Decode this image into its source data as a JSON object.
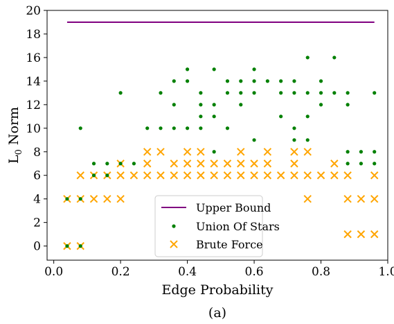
{
  "chart_data": {
    "type": "scatter",
    "caption": "(a)",
    "xlabel": "Edge Probability",
    "ylabel": {
      "base": "L",
      "sub": "0",
      "rest": " Norm"
    },
    "xlim": [
      -0.02,
      1.0
    ],
    "ylim": [
      -1.2,
      20.0
    ],
    "xticks": [
      0.0,
      0.2,
      0.4,
      0.6,
      0.8,
      1.0
    ],
    "xtick_labels": [
      "0.0",
      "0.2",
      "0.4",
      "0.6",
      "0.8",
      "1.0"
    ],
    "yticks": [
      0,
      2,
      4,
      6,
      8,
      10,
      12,
      14,
      16,
      18,
      20
    ],
    "ytick_labels": [
      "0",
      "2",
      "4",
      "6",
      "8",
      "10",
      "12",
      "14",
      "16",
      "18",
      "20"
    ],
    "grid": false,
    "legend_position": "bottom-center",
    "series": [
      {
        "name": "Upper Bound",
        "kind": "line",
        "color": "#800080",
        "x": [
          0.04,
          0.96
        ],
        "y": [
          19,
          19
        ]
      },
      {
        "name": "Union Of Stars",
        "kind": "dot",
        "color": "#008000",
        "points": [
          [
            0.04,
            0
          ],
          [
            0.04,
            4
          ],
          [
            0.08,
            0
          ],
          [
            0.08,
            4
          ],
          [
            0.08,
            10
          ],
          [
            0.12,
            6
          ],
          [
            0.12,
            7
          ],
          [
            0.16,
            6
          ],
          [
            0.16,
            7
          ],
          [
            0.2,
            7
          ],
          [
            0.2,
            13
          ],
          [
            0.24,
            7
          ],
          [
            0.28,
            10
          ],
          [
            0.32,
            10
          ],
          [
            0.32,
            13
          ],
          [
            0.36,
            10
          ],
          [
            0.36,
            12
          ],
          [
            0.36,
            14
          ],
          [
            0.4,
            10
          ],
          [
            0.4,
            14
          ],
          [
            0.4,
            15
          ],
          [
            0.44,
            10
          ],
          [
            0.44,
            11
          ],
          [
            0.44,
            12
          ],
          [
            0.44,
            13
          ],
          [
            0.48,
            8
          ],
          [
            0.48,
            11
          ],
          [
            0.48,
            12
          ],
          [
            0.48,
            15
          ],
          [
            0.52,
            10
          ],
          [
            0.52,
            13
          ],
          [
            0.52,
            14
          ],
          [
            0.56,
            12
          ],
          [
            0.56,
            13
          ],
          [
            0.56,
            14
          ],
          [
            0.6,
            9
          ],
          [
            0.6,
            13
          ],
          [
            0.6,
            14
          ],
          [
            0.6,
            15
          ],
          [
            0.64,
            14
          ],
          [
            0.68,
            11
          ],
          [
            0.68,
            13
          ],
          [
            0.68,
            14
          ],
          [
            0.72,
            9
          ],
          [
            0.72,
            10
          ],
          [
            0.72,
            13
          ],
          [
            0.72,
            14
          ],
          [
            0.76,
            9
          ],
          [
            0.76,
            11
          ],
          [
            0.76,
            13
          ],
          [
            0.76,
            16
          ],
          [
            0.8,
            12
          ],
          [
            0.8,
            13
          ],
          [
            0.8,
            14
          ],
          [
            0.84,
            13
          ],
          [
            0.84,
            16
          ],
          [
            0.88,
            7
          ],
          [
            0.88,
            8
          ],
          [
            0.88,
            12
          ],
          [
            0.88,
            13
          ],
          [
            0.92,
            7
          ],
          [
            0.92,
            8
          ],
          [
            0.96,
            7
          ],
          [
            0.96,
            8
          ],
          [
            0.96,
            13
          ]
        ]
      },
      {
        "name": "Brute Force",
        "kind": "cross",
        "color": "#FFA500",
        "points": [
          [
            0.04,
            0
          ],
          [
            0.04,
            4
          ],
          [
            0.08,
            0
          ],
          [
            0.08,
            4
          ],
          [
            0.08,
            6
          ],
          [
            0.12,
            4
          ],
          [
            0.12,
            6
          ],
          [
            0.16,
            4
          ],
          [
            0.16,
            6
          ],
          [
            0.2,
            4
          ],
          [
            0.2,
            6
          ],
          [
            0.2,
            7
          ],
          [
            0.24,
            6
          ],
          [
            0.28,
            6
          ],
          [
            0.28,
            7
          ],
          [
            0.28,
            8
          ],
          [
            0.32,
            6
          ],
          [
            0.32,
            8
          ],
          [
            0.36,
            6
          ],
          [
            0.36,
            7
          ],
          [
            0.4,
            6
          ],
          [
            0.4,
            7
          ],
          [
            0.4,
            8
          ],
          [
            0.44,
            6
          ],
          [
            0.44,
            7
          ],
          [
            0.44,
            8
          ],
          [
            0.48,
            6
          ],
          [
            0.48,
            7
          ],
          [
            0.52,
            6
          ],
          [
            0.52,
            7
          ],
          [
            0.56,
            6
          ],
          [
            0.56,
            7
          ],
          [
            0.56,
            8
          ],
          [
            0.6,
            6
          ],
          [
            0.6,
            7
          ],
          [
            0.64,
            6
          ],
          [
            0.64,
            7
          ],
          [
            0.64,
            8
          ],
          [
            0.68,
            6
          ],
          [
            0.72,
            6
          ],
          [
            0.72,
            7
          ],
          [
            0.72,
            8
          ],
          [
            0.76,
            4
          ],
          [
            0.76,
            6
          ],
          [
            0.76,
            8
          ],
          [
            0.8,
            6
          ],
          [
            0.84,
            6
          ],
          [
            0.84,
            7
          ],
          [
            0.88,
            1
          ],
          [
            0.88,
            4
          ],
          [
            0.88,
            6
          ],
          [
            0.92,
            1
          ],
          [
            0.92,
            4
          ],
          [
            0.96,
            1
          ],
          [
            0.96,
            4
          ],
          [
            0.96,
            6
          ]
        ]
      }
    ]
  }
}
